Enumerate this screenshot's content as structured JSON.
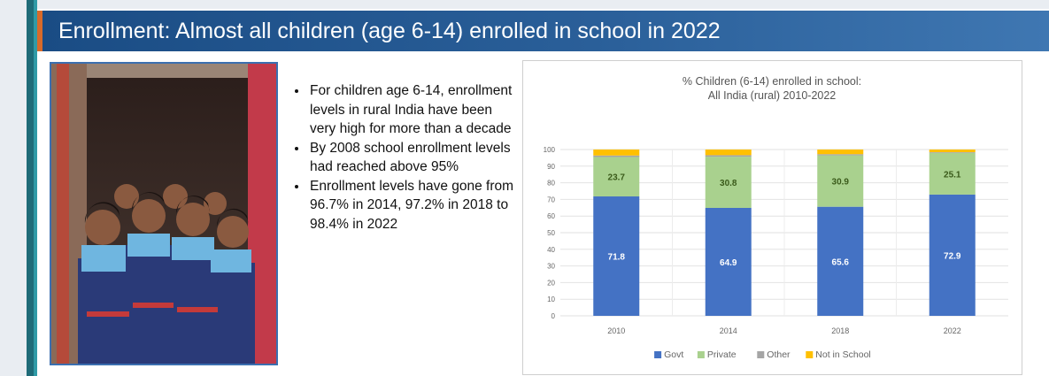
{
  "slide": {
    "title": "Enrollment: Almost all children (age 6-14) enrolled in school in 2022"
  },
  "bullets": [
    "For children age 6-14, enrollment levels in rural India have been very high for more than a decade",
    "By 2008 school enrollment levels had reached above 95%",
    "Enrollment levels have gone from 96.7% in 2014, 97.2% in 2018 to 98.4% in 2022"
  ],
  "colors": {
    "govt": "#4472c4",
    "private": "#a9d18e",
    "other": "#a5a5a5",
    "not_in_school": "#ffc000",
    "title_band": "#1a4c84",
    "accent": "#d86a2a"
  },
  "chart_data": {
    "type": "bar",
    "stacked": true,
    "title_lines": [
      "% Children (6-14) enrolled in school:",
      "All India (rural) 2010-2022"
    ],
    "categories": [
      "2010",
      "2014",
      "2018",
      "2022"
    ],
    "series": [
      {
        "name": "Govt",
        "values": [
          71.8,
          64.9,
          65.6,
          72.9
        ],
        "labels": [
          "71.8",
          "64.9",
          "65.6",
          "72.9"
        ]
      },
      {
        "name": "Private",
        "values": [
          23.7,
          30.8,
          30.9,
          25.1
        ],
        "labels": [
          "23.7",
          "30.8",
          "30.9",
          "25.1"
        ]
      },
      {
        "name": "Other",
        "values": [
          0.9,
          0.9,
          0.7,
          0.4
        ]
      },
      {
        "name": "Not in School",
        "values": [
          3.6,
          3.4,
          2.8,
          1.6
        ]
      }
    ],
    "ylim": [
      0,
      100
    ],
    "yticks": [
      "0",
      "10",
      "20",
      "30",
      "40",
      "50",
      "60",
      "70",
      "80",
      "90",
      "100"
    ],
    "grid": true,
    "legend_position": "bottom"
  }
}
